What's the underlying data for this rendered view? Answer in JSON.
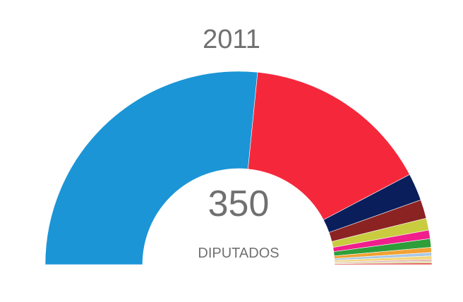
{
  "chart_data": {
    "type": "pie",
    "variant": "semicircle",
    "title": "2011",
    "center_value": "350",
    "center_label": "DIPUTADOS",
    "total": 350,
    "slices": [
      {
        "value": 186,
        "color": "#1b95d6"
      },
      {
        "value": 110,
        "color": "#f5283b"
      },
      {
        "value": 16,
        "color": "#0a1e5c"
      },
      {
        "value": 11,
        "color": "#8b2323"
      },
      {
        "value": 7,
        "color": "#c8cc3e"
      },
      {
        "value": 5,
        "color": "#f01f8c"
      },
      {
        "value": 5,
        "color": "#2e9e3a"
      },
      {
        "value": 3,
        "color": "#f1a232"
      },
      {
        "value": 2,
        "color": "#a8c8e8"
      },
      {
        "value": 2,
        "color": "#f2d77a"
      },
      {
        "value": 1,
        "color": "#e8a8b8"
      },
      {
        "value": 1,
        "color": "#cfd88a"
      },
      {
        "value": 1,
        "color": "#e05050"
      }
    ]
  }
}
